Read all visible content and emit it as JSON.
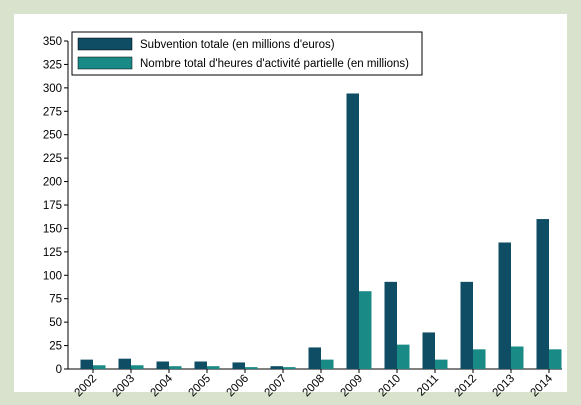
{
  "chart_data": {
    "type": "bar",
    "categories": [
      "2002",
      "2003",
      "2004",
      "2005",
      "2006",
      "2007",
      "2008",
      "2009",
      "2010",
      "2011",
      "2012",
      "2013",
      "2014"
    ],
    "series": [
      {
        "name": "Subvention totale (en millions d'euros)",
        "color": "#0e4d64",
        "values": [
          10,
          11,
          8,
          8,
          7,
          3,
          23,
          294,
          93,
          39,
          93,
          135,
          160
        ]
      },
      {
        "name": "Nombre total d'heures d'activité partielle (en millions)",
        "color": "#198a86",
        "values": [
          4,
          4,
          3,
          3,
          2,
          2,
          10,
          83,
          26,
          10,
          21,
          24,
          21
        ]
      }
    ],
    "ylim": [
      0,
      350
    ],
    "yticks": [
      0,
      25,
      50,
      75,
      100,
      125,
      150,
      175,
      200,
      225,
      250,
      275,
      300,
      325,
      350
    ],
    "legend": "top-left"
  }
}
